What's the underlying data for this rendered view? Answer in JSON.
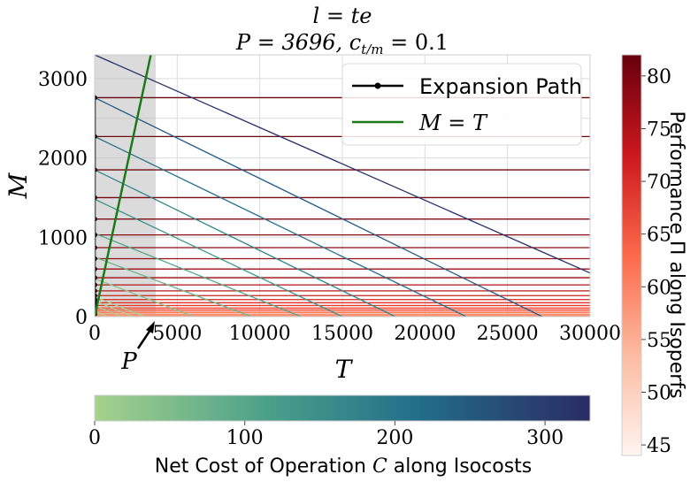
{
  "chart_data": {
    "type": "line",
    "title_line1": "l = te",
    "title_line2": "P = 3696, c",
    "title_line2_sub": "t/m",
    "title_line2_tail": " = 0.1",
    "xlabel": "T",
    "ylabel": "M",
    "xlim": [
      0,
      30000
    ],
    "ylim": [
      0,
      3300
    ],
    "x_ticks": [
      0,
      5000,
      10000,
      15000,
      20000,
      25000,
      30000
    ],
    "x_tick_labels": [
      "0",
      "5000",
      "10000",
      "15000",
      "20000",
      "25000",
      "30000"
    ],
    "y_ticks": [
      0,
      1000,
      2000,
      3000
    ],
    "y_tick_labels": [
      "0",
      "1000",
      "2000",
      "3000"
    ],
    "grid": true,
    "P_value": 3696,
    "P_label": "P",
    "shaded_region_x": [
      0,
      3696
    ],
    "legend_position": "top-right",
    "legend": [
      {
        "name": "Expansion Path",
        "color": "#000000"
      },
      {
        "name": "M = T",
        "color": "#1a7a1a"
      }
    ],
    "isoperf_levels": [
      30,
      50,
      70,
      90,
      110,
      140,
      175,
      215,
      265,
      325,
      400,
      490,
      600,
      730,
      870,
      1030,
      1230,
      1500,
      1850,
      2270,
      2760
    ],
    "isoperf_colors": [
      "#fc8a6a",
      "#fb7c5c",
      "#fa6c4f",
      "#f65c44",
      "#f04c3a",
      "#e63a2e",
      "#dc2e26",
      "#d2251f",
      "#c7201d",
      "#bc1a1b",
      "#b11519",
      "#a71217",
      "#9e1016",
      "#960f15",
      "#8e0d14",
      "#870c13",
      "#800b12",
      "#780a11",
      "#700910",
      "#6b080f",
      "#67000d"
    ],
    "isocost_lines": [
      {
        "x_intercept": 3000,
        "m_intercept": 250,
        "color": "#a6d28c"
      },
      {
        "x_intercept": 6000,
        "m_intercept": 480,
        "color": "#8ac48a"
      },
      {
        "x_intercept": 9500,
        "m_intercept": 750,
        "color": "#6db58a"
      },
      {
        "x_intercept": 12500,
        "m_intercept": 1050,
        "color": "#52a58b"
      },
      {
        "x_intercept": 15000,
        "m_intercept": 1480,
        "color": "#3c948a"
      },
      {
        "x_intercept": 18200,
        "m_intercept": 1850,
        "color": "#2e8589"
      },
      {
        "x_intercept": 22500,
        "m_intercept": 2270,
        "color": "#257089"
      },
      {
        "x_intercept": 27100,
        "m_intercept": 2760,
        "color": "#225a85"
      },
      {
        "x_intercept": 36000,
        "m_intercept": 3300,
        "color": "#26306a"
      }
    ],
    "colorbar_right": {
      "label": "Performance Π along Isoperfs",
      "ticks": [
        "45",
        "50",
        "55",
        "60",
        "65",
        "70",
        "75",
        "80"
      ],
      "range": [
        44,
        82
      ]
    },
    "colorbar_bottom": {
      "label_prefix": "Net Cost of Operation ",
      "label_var": "C",
      "label_suffix": " along Isocosts",
      "ticks": [
        "0",
        "100",
        "200",
        "300"
      ],
      "range": [
        0,
        330
      ]
    }
  }
}
